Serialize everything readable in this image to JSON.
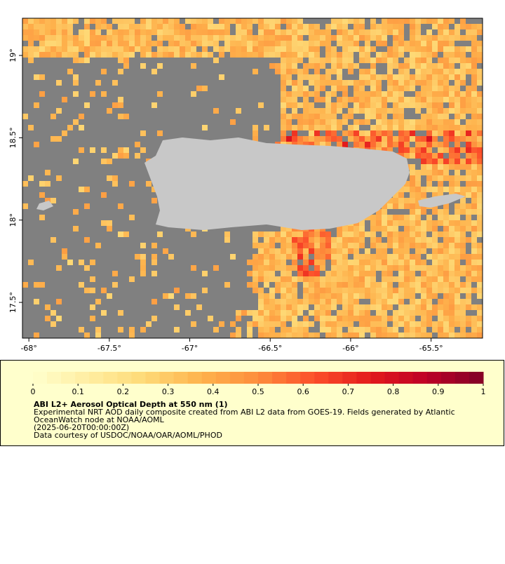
{
  "map": {
    "xlim": [
      -68.04,
      -65.18
    ],
    "ylim": [
      17.283,
      19.226
    ],
    "xticks": [
      {
        "value": -68,
        "label": "-68°"
      },
      {
        "value": -67.5,
        "label": "-67.5°"
      },
      {
        "value": -67,
        "label": "-67°"
      },
      {
        "value": -66.5,
        "label": "-66.5°"
      },
      {
        "value": -66,
        "label": "-66°"
      },
      {
        "value": -65.5,
        "label": "-65.5°"
      }
    ],
    "yticks": [
      {
        "value": 17.5,
        "label": "17.5°"
      },
      {
        "value": 18,
        "label": "18°"
      },
      {
        "value": 18.5,
        "label": "18.5°"
      },
      {
        "value": 19,
        "label": "19°"
      }
    ]
  },
  "colorbar": {
    "lim": [
      0,
      1
    ],
    "ticks": [
      0,
      0.1,
      0.2,
      0.3,
      0.4,
      0.5,
      0.6,
      0.7,
      0.8,
      0.9,
      1
    ],
    "colors": [
      "#ffffcc",
      "#ffeda0",
      "#fed976",
      "#feb24c",
      "#fd8d3c",
      "#fc4e2a",
      "#e31a1c",
      "#bd0026",
      "#800026"
    ]
  },
  "caption": {
    "title": "ABI L2+ Aerosol Optical Depth at 550 nm (1)",
    "lines": [
      "Experimental NRT AOD daily composite created from ABI L2 data from GOES-19. Fields generated by Atlantic",
      "OceanWatch node at NOAA/AOML",
      "(2025-06-20T00:00:00Z)",
      "Data courtesy of USDOC/NOAA/OAR/AOML/PHOD"
    ]
  }
}
